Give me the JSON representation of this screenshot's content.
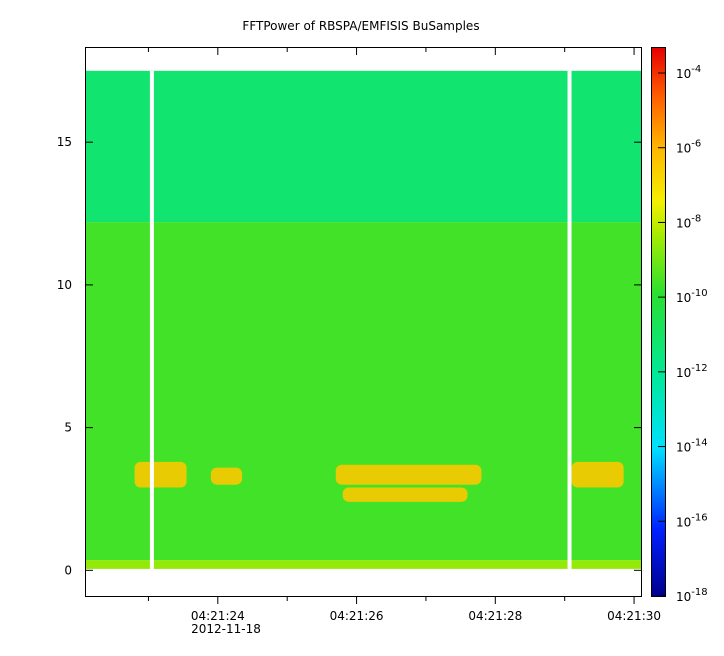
{
  "chart_data": {
    "type": "heatmap",
    "title": "FFTPower of RBSPA/EMFISIS  BuSamples",
    "xlabel": "",
    "ylabel": "",
    "x_date_label": "2012-11-18",
    "x_ticks": [
      {
        "label": "04:21:24",
        "t": 24
      },
      {
        "label": "04:21:26",
        "t": 26
      },
      {
        "label": "04:21:28",
        "t": 28
      },
      {
        "label": "04:21:30",
        "t": 30
      }
    ],
    "x_minor_ticks": [
      23,
      25,
      27,
      29
    ],
    "xlim": [
      22.1,
      30.1
    ],
    "y_ticks": [
      0,
      5,
      10,
      15
    ],
    "ylim": [
      -0.9,
      18.3
    ],
    "colorbar": {
      "scale": "log",
      "range": [
        1e-18,
        0.0001
      ],
      "tick_exponents": [
        -18,
        -16,
        -14,
        -12,
        -10,
        -8,
        -6,
        -4
      ],
      "tick_base": "10"
    },
    "field": {
      "data_ylim": [
        0.05,
        17.5
      ],
      "level_low_band": 1e-09,
      "level_main": 1e-10,
      "level_upper": 3e-12,
      "upper_band_start": 12.2,
      "gaps": [
        23.05,
        29.07
      ],
      "features": [
        {
          "t0": 22.8,
          "t1": 23.55,
          "y0": 2.9,
          "y1": 3.8,
          "level": 1e-07
        },
        {
          "t0": 23.9,
          "t1": 24.35,
          "y0": 3.0,
          "y1": 3.6,
          "level": 1e-07
        },
        {
          "t0": 25.7,
          "t1": 27.8,
          "y0": 3.0,
          "y1": 3.7,
          "level": 1e-07
        },
        {
          "t0": 25.8,
          "t1": 27.6,
          "y0": 2.4,
          "y1": 2.9,
          "level": 1e-07
        },
        {
          "t0": 29.1,
          "t1": 29.85,
          "y0": 2.9,
          "y1": 3.8,
          "level": 1e-07
        }
      ]
    }
  }
}
